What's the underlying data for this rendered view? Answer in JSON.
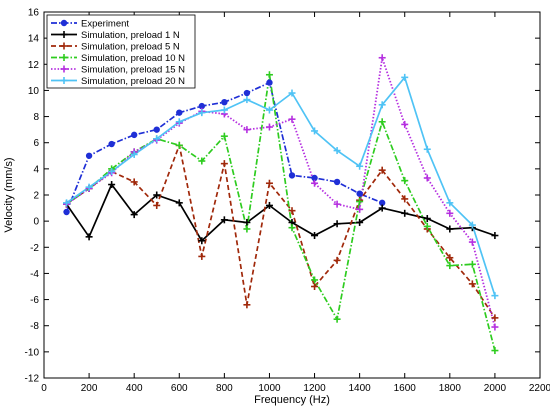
{
  "chart_data": {
    "type": "line",
    "title": "",
    "xlabel": "Frequency (Hz)",
    "ylabel": "Velocity (mm/s)",
    "xlim": [
      0,
      2200
    ],
    "ylim": [
      -12,
      16
    ],
    "xticks": [
      0,
      200,
      400,
      600,
      800,
      1000,
      1200,
      1400,
      1600,
      1800,
      2000,
      2200
    ],
    "yticks": [
      -12,
      -10,
      -8,
      -6,
      -4,
      -2,
      0,
      2,
      4,
      6,
      8,
      10,
      12,
      14,
      16
    ],
    "grid": false,
    "legend": "top-left",
    "series": [
      {
        "name": "Experiment",
        "color": "#1f2fd6",
        "dash": "dashdot",
        "marker": "circle",
        "x": [
          100,
          200,
          300,
          400,
          500,
          600,
          700,
          800,
          900,
          1000,
          1100,
          1200,
          1300,
          1400,
          1500
        ],
        "y": [
          0.7,
          5.0,
          5.9,
          6.6,
          7.0,
          8.3,
          8.8,
          9.1,
          9.8,
          10.6,
          3.5,
          3.3,
          3.0,
          2.1,
          1.4
        ]
      },
      {
        "name": "Simulation, preload 1 N",
        "color": "#000000",
        "dash": "solid",
        "marker": "plus",
        "x": [
          100,
          200,
          300,
          400,
          500,
          600,
          700,
          800,
          900,
          1000,
          1100,
          1200,
          1300,
          1400,
          1500,
          1600,
          1700,
          1800,
          1900,
          2000
        ],
        "y": [
          1.3,
          -1.2,
          2.8,
          0.5,
          2.0,
          1.4,
          -1.5,
          0.1,
          -0.1,
          1.2,
          -0.1,
          -1.1,
          -0.2,
          -0.1,
          1.0,
          0.6,
          0.2,
          -0.6,
          -0.5,
          -1.1
        ]
      },
      {
        "name": "Simulation, preload 5 N",
        "color": "#a0280a",
        "dash": "dashed",
        "marker": "plus",
        "x": [
          100,
          200,
          300,
          400,
          500,
          600,
          700,
          800,
          900,
          1000,
          1100,
          1200,
          1300,
          1400,
          1500,
          1600,
          1700,
          1800,
          1900,
          2000
        ],
        "y": [
          1.3,
          2.5,
          3.8,
          3.0,
          1.2,
          5.8,
          -2.7,
          4.4,
          -6.4,
          2.9,
          0.8,
          -5.0,
          -3.0,
          1.6,
          3.9,
          1.7,
          -0.6,
          -2.8,
          -4.8,
          -7.4
        ]
      },
      {
        "name": "Simulation, preload 10 N",
        "color": "#2ecc1f",
        "dash": "dashdot",
        "marker": "plus",
        "x": [
          100,
          200,
          300,
          400,
          500,
          600,
          700,
          800,
          900,
          1000,
          1100,
          1200,
          1300,
          1400,
          1500,
          1600,
          1700,
          1800,
          1900,
          2000
        ],
        "y": [
          1.3,
          2.5,
          4.0,
          5.3,
          6.3,
          5.8,
          4.6,
          6.5,
          -0.6,
          11.2,
          -0.5,
          -4.5,
          -7.5,
          1.5,
          7.6,
          3.1,
          -0.4,
          -3.4,
          -3.3,
          -9.9
        ]
      },
      {
        "name": "Simulation, preload 15 N",
        "color": "#b52fe0",
        "dash": "dotted",
        "marker": "plus",
        "x": [
          100,
          200,
          300,
          400,
          500,
          600,
          700,
          800,
          900,
          1000,
          1100,
          1200,
          1300,
          1400,
          1500,
          1600,
          1700,
          1800,
          1900,
          2000
        ],
        "y": [
          1.3,
          2.5,
          3.7,
          5.3,
          6.2,
          7.5,
          8.4,
          8.2,
          7.0,
          7.2,
          7.8,
          2.9,
          1.3,
          0.9,
          12.5,
          7.4,
          3.3,
          0.6,
          -1.6,
          -8.1
        ]
      },
      {
        "name": "Simulation, preload 20 N",
        "color": "#4fc3f5",
        "dash": "solid",
        "marker": "plus",
        "x": [
          100,
          200,
          300,
          400,
          500,
          600,
          700,
          800,
          900,
          1000,
          1100,
          1200,
          1300,
          1400,
          1500,
          1600,
          1700,
          1800,
          1900,
          2000
        ],
        "y": [
          1.4,
          2.6,
          3.8,
          5.1,
          6.3,
          7.6,
          8.3,
          8.5,
          9.3,
          8.5,
          9.8,
          6.9,
          5.4,
          4.2,
          8.9,
          11.0,
          5.5,
          1.4,
          -0.3,
          -5.7
        ]
      }
    ]
  }
}
